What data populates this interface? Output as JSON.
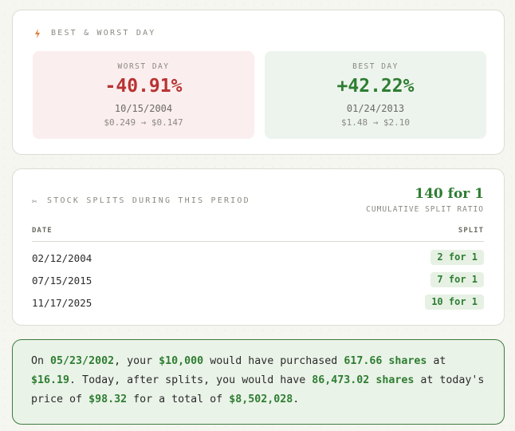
{
  "best_worst": {
    "section_label": "BEST & WORST DAY",
    "worst": {
      "label": "WORST DAY",
      "percent": "-40.91%",
      "date": "10/15/2004",
      "range": "$0.249 → $0.147"
    },
    "best": {
      "label": "BEST DAY",
      "percent": "+42.22%",
      "date": "01/24/2013",
      "range": "$1.48 → $2.10"
    }
  },
  "splits": {
    "section_label": "STOCK SPLITS DURING THIS PERIOD",
    "cumulative_value": "140 for 1",
    "cumulative_label": "CUMULATIVE SPLIT RATIO",
    "columns": [
      "DATE",
      "SPLIT"
    ],
    "rows": [
      {
        "date": "02/12/2004",
        "split": "2 for 1"
      },
      {
        "date": "07/15/2015",
        "split": "7 for 1"
      },
      {
        "date": "11/17/2025",
        "split": "10 for 1"
      }
    ]
  },
  "summary": {
    "t1": "On ",
    "purchase_date": "05/23/2002",
    "t2": ", your ",
    "investment": "$10,000",
    "t3": " would have purchased ",
    "shares_purchased": "617.66 shares",
    "t4": " at ",
    "purchase_price": "$16.19",
    "t5": ". Today, after splits, you would have ",
    "shares_now": "86,473.02 shares",
    "t6": " at today's price of ",
    "current_price": "$98.32",
    "t7": " for a total of ",
    "total_value": "$8,502,028",
    "t8": "."
  },
  "colors": {
    "positive": "#2e7d32",
    "negative": "#b83333",
    "accent_bolt": "#e07b39"
  },
  "icons": {
    "bolt": "lightning-bolt-icon",
    "scissors": "scissors-icon"
  }
}
